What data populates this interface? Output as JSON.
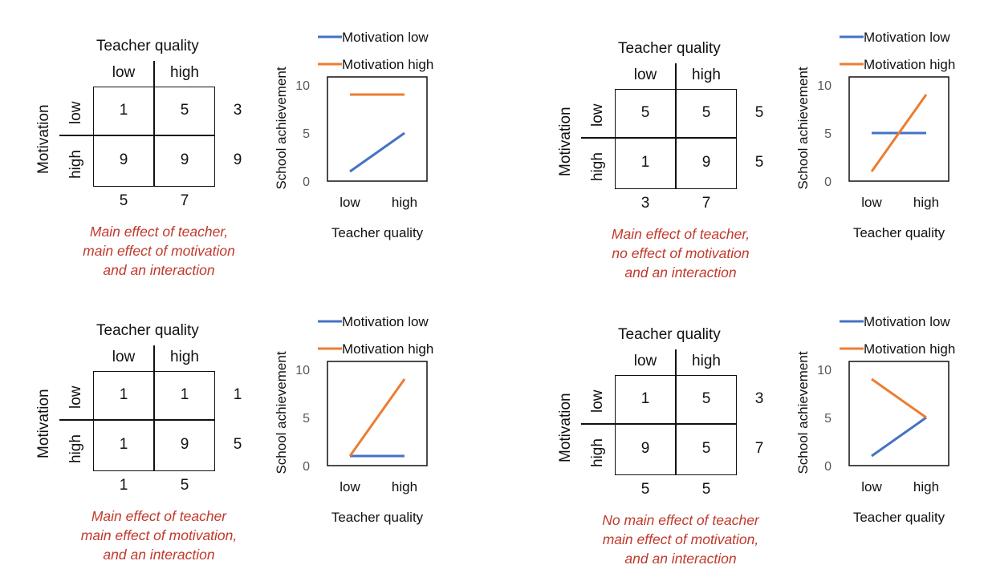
{
  "panels": [
    {
      "table": {
        "title": "Teacher quality",
        "col_labels": [
          "low",
          "high"
        ],
        "row_title": "Motivation",
        "row_labels": [
          "low",
          "high"
        ],
        "cells": [
          [
            "1",
            "5"
          ],
          [
            "9",
            "9"
          ]
        ],
        "row_margins": [
          "3",
          "9"
        ],
        "col_margins": [
          "5",
          "7"
        ]
      },
      "caption": [
        "Main effect of teacher,",
        "main effect of motivation",
        "and an interaction"
      ]
    },
    {
      "table": {
        "title": "Teacher quality",
        "col_labels": [
          "low",
          "high"
        ],
        "row_title": "Motivation",
        "row_labels": [
          "low",
          "high"
        ],
        "cells": [
          [
            "5",
            "5"
          ],
          [
            "1",
            "9"
          ]
        ],
        "row_margins": [
          "5",
          "5"
        ],
        "col_margins": [
          "3",
          "7"
        ]
      },
      "caption": [
        "Main effect of teacher,",
        "no effect of motivation",
        "and an interaction"
      ]
    },
    {
      "table": {
        "title": "Teacher quality",
        "col_labels": [
          "low",
          "high"
        ],
        "row_title": "Motivation",
        "row_labels": [
          "low",
          "high"
        ],
        "cells": [
          [
            "1",
            "1"
          ],
          [
            "1",
            "9"
          ]
        ],
        "row_margins": [
          "1",
          "5"
        ],
        "col_margins": [
          "1",
          "5"
        ]
      },
      "caption": [
        "Main effect of teacher",
        "main effect of motivation,",
        "and an interaction"
      ]
    },
    {
      "table": {
        "title": "Teacher quality",
        "col_labels": [
          "low",
          "high"
        ],
        "row_title": "Motivation",
        "row_labels": [
          "low",
          "high"
        ],
        "cells": [
          [
            "1",
            "5"
          ],
          [
            "9",
            "5"
          ]
        ],
        "row_margins": [
          "3",
          "7"
        ],
        "col_margins": [
          "5",
          "5"
        ]
      },
      "caption": [
        "No main effect of teacher",
        "main effect of motivation,",
        "and an interaction"
      ]
    }
  ],
  "chart_data": [
    {
      "type": "line",
      "categories": [
        "low",
        "high"
      ],
      "series": [
        {
          "name": "Motivation low",
          "values": [
            1,
            5
          ],
          "color": "#4472c4"
        },
        {
          "name": "Motivation high",
          "values": [
            9,
            9
          ],
          "color": "#ed7d31"
        }
      ],
      "xlabel": "Teacher quality",
      "ylabel": "School achievement",
      "ylim": [
        0,
        10
      ],
      "yticks": [
        "0",
        "5",
        "10"
      ],
      "legend": "top",
      "grid": false
    },
    {
      "type": "line",
      "categories": [
        "low",
        "high"
      ],
      "series": [
        {
          "name": "Motivation low",
          "values": [
            5,
            5
          ],
          "color": "#4472c4"
        },
        {
          "name": "Motivation high",
          "values": [
            1,
            9
          ],
          "color": "#ed7d31"
        }
      ],
      "xlabel": "Teacher quality",
      "ylabel": "School achievement",
      "ylim": [
        0,
        10
      ],
      "yticks": [
        "0",
        "5",
        "10"
      ],
      "legend": "top",
      "grid": false
    },
    {
      "type": "line",
      "categories": [
        "low",
        "high"
      ],
      "series": [
        {
          "name": "Motivation low",
          "values": [
            1,
            1
          ],
          "color": "#4472c4"
        },
        {
          "name": "Motivation high",
          "values": [
            1,
            9
          ],
          "color": "#ed7d31"
        }
      ],
      "xlabel": "Teacher quality",
      "ylabel": "School achievement",
      "ylim": [
        0,
        10
      ],
      "yticks": [
        "0",
        "5",
        "10"
      ],
      "legend": "top",
      "grid": false
    },
    {
      "type": "line",
      "categories": [
        "low",
        "high"
      ],
      "series": [
        {
          "name": "Motivation low",
          "values": [
            1,
            5
          ],
          "color": "#4472c4"
        },
        {
          "name": "Motivation high",
          "values": [
            9,
            5
          ],
          "color": "#ed7d31"
        }
      ],
      "xlabel": "Teacher quality",
      "ylabel": "School achievement",
      "ylim": [
        0,
        10
      ],
      "yticks": [
        "0",
        "5",
        "10"
      ],
      "legend": "top",
      "grid": false
    }
  ]
}
